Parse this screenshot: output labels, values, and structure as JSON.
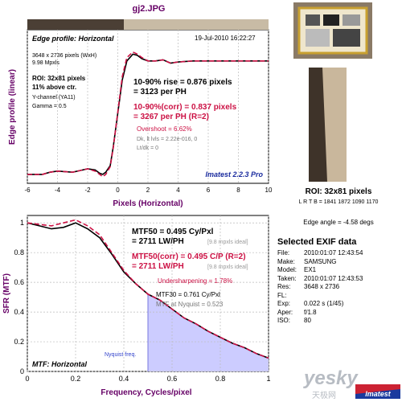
{
  "header": {
    "file_title": "gj2.JPG",
    "roi_caption": "ROI: 32x81 pixels",
    "lrtb": "L R T B = 1841 1872  1090 1170",
    "edge_angle": "Edge angle = -4.58 degs"
  },
  "edge_panel": {
    "title": "Edge profile: Horizontal",
    "date": "19-Jul-2010 16:22:27",
    "image_size": "3648 x 2736 pixels (WxH)",
    "mpxls": "9.98 Mpxls",
    "roi_line": "ROI: 32x81 pixels",
    "above_ctr": "11% above ctr.",
    "channel": "Y-channel  (YA11)",
    "gamma": "Gamma = 0.5",
    "rise1": "10-90% rise = 0.876 pixels",
    "rise2": "= 3123 per PH",
    "corr1": "10-90%(corr) = 0.837 pixels",
    "corr2": "= 3267 per PH   (R=2)",
    "overshoot": "Overshoot = 6.62%",
    "dk": "Dk, lt lvls = 2.22e-016, 0",
    "ltdk": "Lt/dk = 0",
    "brand": "Imatest 2.2.3 Pro"
  },
  "mtf_panel": {
    "title": "MTF: Horizontal",
    "mtf50_1": "MTF50 = 0.495 Cy/Pxl",
    "mtf50_2": "= 2711 LW/PH",
    "ideal1": "[9.8 mpxls ideal]",
    "corr1": "MTF50(corr) = 0.495 C/P  (R=2)",
    "corr2": "= 2711 LW/PH",
    "ideal2": "[9.8 mpxls ideal]",
    "undersharp": "Undersharpening = 1.78%",
    "mtf30": "MTF30 = 0.761 Cy/Pxl",
    "nyq_mtf": "MTF at Nyquist = 0.523",
    "nyquist": "Nyquist freq."
  },
  "exif": {
    "title": "Selected EXIF data",
    "rows": [
      {
        "k": "File:",
        "v": "2010:01:07 12:43:54"
      },
      {
        "k": "Make:",
        "v": "SAMSUNG"
      },
      {
        "k": "Model:",
        "v": "EX1"
      },
      {
        "k": "Taken:",
        "v": "2010:01:07 12:43:53"
      },
      {
        "k": "Res:",
        "v": "3648 x 2736"
      },
      {
        "k": "FL:",
        "v": ""
      },
      {
        "k": "Exp:",
        "v": "0.022 s  (1/45)"
      },
      {
        "k": "Aper:",
        "v": "f/1.8"
      },
      {
        "k": "ISO:",
        "v": "80"
      }
    ]
  },
  "watermark": {
    "text1": "yesky",
    "text2": "天极网",
    "logo": "Imatest"
  },
  "colors": {
    "black": "#000000",
    "red": "#cc1144",
    "purple": "#660066",
    "fill": "#ccccff",
    "nyq": "#7777dd"
  },
  "chart_data": [
    {
      "type": "line",
      "title": "Edge profile: Horizontal",
      "xlabel": "Pixels (Horizontal)",
      "ylabel": "Edge profile (linear)",
      "xlim": [
        -6,
        10
      ],
      "ylim": [
        -0.08,
        1.3
      ],
      "x_ticks": [
        -6,
        -4,
        -2,
        0,
        2,
        4,
        6,
        8,
        10
      ],
      "x_tick_labels": [
        "-6",
        "-4",
        "-2",
        "0",
        "2",
        "4",
        "6",
        "8",
        "10"
      ],
      "series": [
        {
          "color": "#000000",
          "dashed": false,
          "x": [
            -6,
            -5,
            -4.5,
            -4,
            -3,
            -2.5,
            -2,
            -1.5,
            -1.2,
            -1,
            -0.8,
            -0.5,
            -0.3,
            0,
            0.3,
            0.6,
            1,
            1.3,
            1.6,
            2,
            2.5,
            3,
            3.5,
            4,
            5,
            6,
            7,
            8,
            9,
            10
          ],
          "y": [
            0,
            0,
            0.02,
            0.03,
            0.02,
            0.035,
            0.05,
            0.04,
            0.01,
            0.0,
            0.02,
            0.08,
            0.25,
            0.55,
            0.85,
            1.02,
            1.08,
            1.07,
            1.04,
            1.02,
            1.02,
            1.03,
            1.0,
            1.01,
            1.02,
            1.02,
            1.02,
            1.02,
            1.02,
            1.02
          ]
        },
        {
          "color": "#cc1144",
          "dashed": true,
          "x": [
            -6,
            -5,
            -4.5,
            -4,
            -3,
            -2.5,
            -2,
            -1.5,
            -1.2,
            -1,
            -0.8,
            -0.5,
            -0.3,
            0,
            0.3,
            0.6,
            1,
            1.3,
            1.6,
            2,
            2.5,
            3,
            3.5,
            4,
            5,
            6,
            7,
            8,
            9,
            10
          ],
          "y": [
            0,
            0,
            0.02,
            0.03,
            0.02,
            0.035,
            0.05,
            0.03,
            0.0,
            -0.02,
            0.0,
            0.07,
            0.24,
            0.56,
            0.88,
            1.05,
            1.1,
            1.08,
            1.05,
            1.02,
            1.02,
            1.03,
            1.0,
            1.01,
            1.02,
            1.02,
            1.02,
            1.02,
            1.02,
            1.02
          ]
        }
      ]
    },
    {
      "type": "line",
      "title": "MTF: Horizontal",
      "xlabel": "Frequency, Cycles/pixel",
      "ylabel": "SFR (MTF)",
      "xlim": [
        0,
        1
      ],
      "ylim": [
        0,
        1.05
      ],
      "x_ticks": [
        0,
        0.2,
        0.4,
        0.6,
        0.8,
        1
      ],
      "x_tick_labels": [
        "0",
        "0.2",
        "0.4",
        "0.6",
        "0.8",
        "1"
      ],
      "y_ticks": [
        0,
        0.2,
        0.4,
        0.6,
        0.8,
        1
      ],
      "y_tick_labels": [
        "0",
        "0.2",
        "0.4",
        "0.6",
        "0.8",
        "1"
      ],
      "nyquist": 0.5,
      "series": [
        {
          "color": "#000000",
          "dashed": false,
          "x": [
            0,
            0.05,
            0.1,
            0.15,
            0.2,
            0.25,
            0.3,
            0.35,
            0.4,
            0.45,
            0.5,
            0.55,
            0.6,
            0.65,
            0.7,
            0.75,
            0.8,
            0.85,
            0.9,
            0.95,
            1.0
          ],
          "y": [
            1.0,
            0.98,
            0.96,
            0.97,
            1.0,
            0.96,
            0.9,
            0.79,
            0.67,
            0.59,
            0.52,
            0.48,
            0.42,
            0.36,
            0.32,
            0.27,
            0.23,
            0.19,
            0.16,
            0.12,
            0.09
          ]
        },
        {
          "color": "#cc1144",
          "dashed": true,
          "x": [
            0,
            0.05,
            0.1,
            0.15,
            0.2,
            0.25,
            0.3,
            0.35,
            0.4,
            0.45,
            0.5,
            0.55,
            0.6,
            0.65,
            0.7,
            0.75,
            0.8,
            0.85,
            0.9,
            0.95,
            1.0
          ],
          "y": [
            1.0,
            0.99,
            0.98,
            1.0,
            1.02,
            0.98,
            0.92,
            0.8,
            0.68,
            0.59,
            0.52,
            0.48,
            0.42,
            0.36,
            0.32,
            0.27,
            0.23,
            0.19,
            0.16,
            0.12,
            0.09
          ]
        }
      ]
    }
  ]
}
